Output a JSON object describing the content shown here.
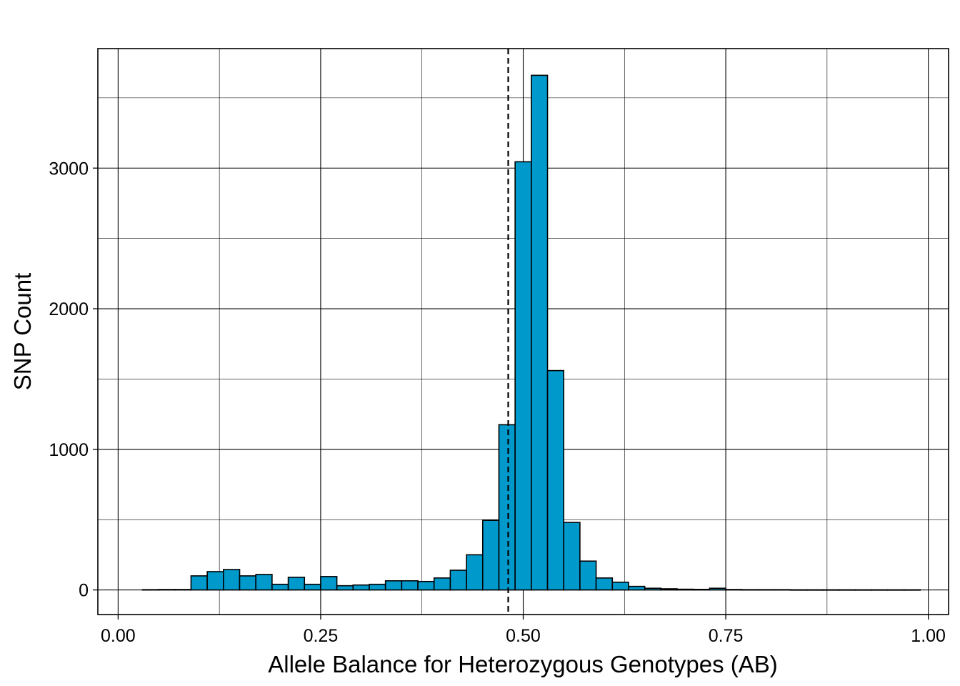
{
  "chart_data": {
    "type": "bar",
    "title": "",
    "xlabel": "Allele Balance for Heterozygous Genotypes (AB)",
    "ylabel": "SNP Count",
    "xlim": [
      -0.025,
      1.025
    ],
    "ylim": [
      -175,
      3850
    ],
    "x_ticks": [
      0.0,
      0.25,
      0.5,
      0.75,
      1.0
    ],
    "x_tick_labels": [
      "0.00",
      "0.25",
      "0.50",
      "0.75",
      "1.00"
    ],
    "y_ticks": [
      0,
      1000,
      2000,
      3000
    ],
    "y_tick_labels": [
      "0",
      "1000",
      "2000",
      "3000"
    ],
    "x_minor_gridlines": [
      0.125,
      0.375,
      0.625,
      0.875
    ],
    "y_minor_gridlines": [
      500,
      1500,
      2500,
      3500
    ],
    "grid": true,
    "legend": "none",
    "bin_width": 0.02,
    "bin_starts": [
      0.03,
      0.05,
      0.07,
      0.09,
      0.11,
      0.13,
      0.15,
      0.17,
      0.19,
      0.21,
      0.23,
      0.25,
      0.27,
      0.29,
      0.31,
      0.33,
      0.35,
      0.37,
      0.39,
      0.41,
      0.43,
      0.45,
      0.47,
      0.49,
      0.51,
      0.53,
      0.55,
      0.57,
      0.59,
      0.61,
      0.63,
      0.65,
      0.67,
      0.69,
      0.71,
      0.73,
      0.75,
      0.77,
      0.79,
      0.81,
      0.83,
      0.85,
      0.87,
      0.89,
      0.91,
      0.93,
      0.95,
      0.97
    ],
    "values": [
      2,
      3,
      3,
      100,
      130,
      145,
      100,
      110,
      40,
      90,
      40,
      95,
      30,
      35,
      40,
      65,
      65,
      60,
      85,
      140,
      250,
      495,
      1175,
      3045,
      3660,
      1560,
      480,
      205,
      85,
      55,
      25,
      12,
      8,
      5,
      4,
      12,
      3,
      2,
      2,
      2,
      1,
      1,
      1,
      1,
      1,
      1,
      1,
      1
    ],
    "bar_fill": "#0099cc",
    "bar_stroke": "#000000",
    "reference_line": {
      "x": 0.4815,
      "style": "dashed",
      "color": "#000000"
    }
  }
}
